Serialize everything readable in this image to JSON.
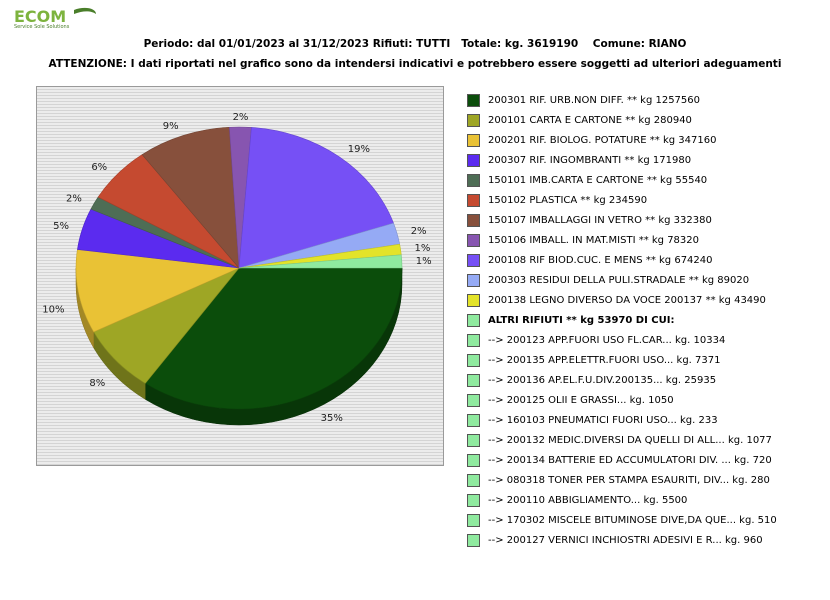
{
  "logo": {
    "text": "ECOM",
    "tagline": "Service Sole Solutions",
    "colors": [
      "#7db33e",
      "#4a7e2a"
    ]
  },
  "header": {
    "line1": "Periodo: dal 01/01/2023 al 31/12/2023 Rifiuti: TUTTI   Totale: kg. 3619190    Comune: RIANO",
    "line2": "ATTENZIONE: I dati riportati nel grafico sono da intendersi indicativi e potrebbero essere soggetti ad ulteriori adeguamenti"
  },
  "chart_data": {
    "type": "pie",
    "title": "Periodo: dal 01/01/2023 al 31/12/2023 Rifiuti: TUTTI   Totale: kg. 3619190    Comune: RIANO",
    "total": 3619190,
    "slices": [
      {
        "label": "200301 RIF. URB.NON DIFF. ** kg 1257560",
        "value": 1257560,
        "pct_label": "35%",
        "color": "#0b4d0b"
      },
      {
        "label": "200101 CARTA E CARTONE ** kg 280940",
        "value": 280940,
        "pct_label": "8%",
        "color": "#9ea625"
      },
      {
        "label": "200201 RIF. BIOLOG. POTATURE ** kg 347160",
        "value": 347160,
        "pct_label": "10%",
        "color": "#e9c235"
      },
      {
        "label": "200307 RIF. INGOMBRANTI ** kg 171980",
        "value": 171980,
        "pct_label": "5%",
        "color": "#5b2bef"
      },
      {
        "label": "150101 IMB.CARTA E CARTONE ** kg 55540",
        "value": 55540,
        "pct_label": "2%",
        "color": "#4e6d55"
      },
      {
        "label": "150102 PLASTICA ** kg 234590",
        "value": 234590,
        "pct_label": "6%",
        "color": "#c54a30"
      },
      {
        "label": "150107 IMBALLAGGI IN VETRO ** kg 332380",
        "value": 332380,
        "pct_label": "9%",
        "color": "#87503c"
      },
      {
        "label": "150106 IMBALL. IN MAT.MISTI ** kg 78320",
        "value": 78320,
        "pct_label": "2%",
        "color": "#8755b0"
      },
      {
        "label": "200108 RIF BIOD.CUC. E MENS ** kg 674240",
        "value": 674240,
        "pct_label": "19%",
        "color": "#7650f5"
      },
      {
        "label": "200303 RESIDUI DELLA PULI.STRADALE ** kg 89020",
        "value": 89020,
        "pct_label": "2%",
        "color": "#95aaf5"
      },
      {
        "label": "200138 LEGNO DIVERSO DA VOCE 200137 ** kg 43490",
        "value": 43490,
        "pct_label": "1%",
        "color": "#e3e32a"
      },
      {
        "label": "ALTRI RIFIUTI ** kg 53970 DI CUI:",
        "value": 53970,
        "pct_label": "1%",
        "color": "#8fea9f"
      }
    ],
    "altri_details": [
      {
        "label": "-->  200123 APP.FUORI USO FL.CAR... kg. 10334",
        "value": 10334
      },
      {
        "label": "-->  200135 APP.ELETTR.FUORI USO... kg. 7371",
        "value": 7371
      },
      {
        "label": "-->  200136 AP.EL.F.U.DIV.200135... kg. 25935",
        "value": 25935
      },
      {
        "label": "-->  200125 OLII E GRASSI... kg. 1050",
        "value": 1050
      },
      {
        "label": "-->  160103 PNEUMATICI FUORI USO... kg. 233",
        "value": 233
      },
      {
        "label": "-->  200132 MEDIC.DIVERSI DA QUELLI DI ALL... kg. 1077",
        "value": 1077
      },
      {
        "label": "-->  200134 BATTERIE ED ACCUMULATORI DIV. ... kg. 720",
        "value": 720
      },
      {
        "label": "-->  080318 TONER PER STAMPA ESAURITI, DIV... kg. 280",
        "value": 280
      },
      {
        "label": "-->  200110 ABBIGLIAMENTO... kg. 5500",
        "value": 5500
      },
      {
        "label": "-->  170302 MISCELE BITUMINOSE DIVE,DA QUE... kg. 510",
        "value": 510
      },
      {
        "label": "-->  200127 VERNICI INCHIOSTRI ADESIVI E R... kg. 960",
        "value": 960
      }
    ],
    "details_color": "#8fea9f",
    "legend_position": "right",
    "style": "3d"
  }
}
